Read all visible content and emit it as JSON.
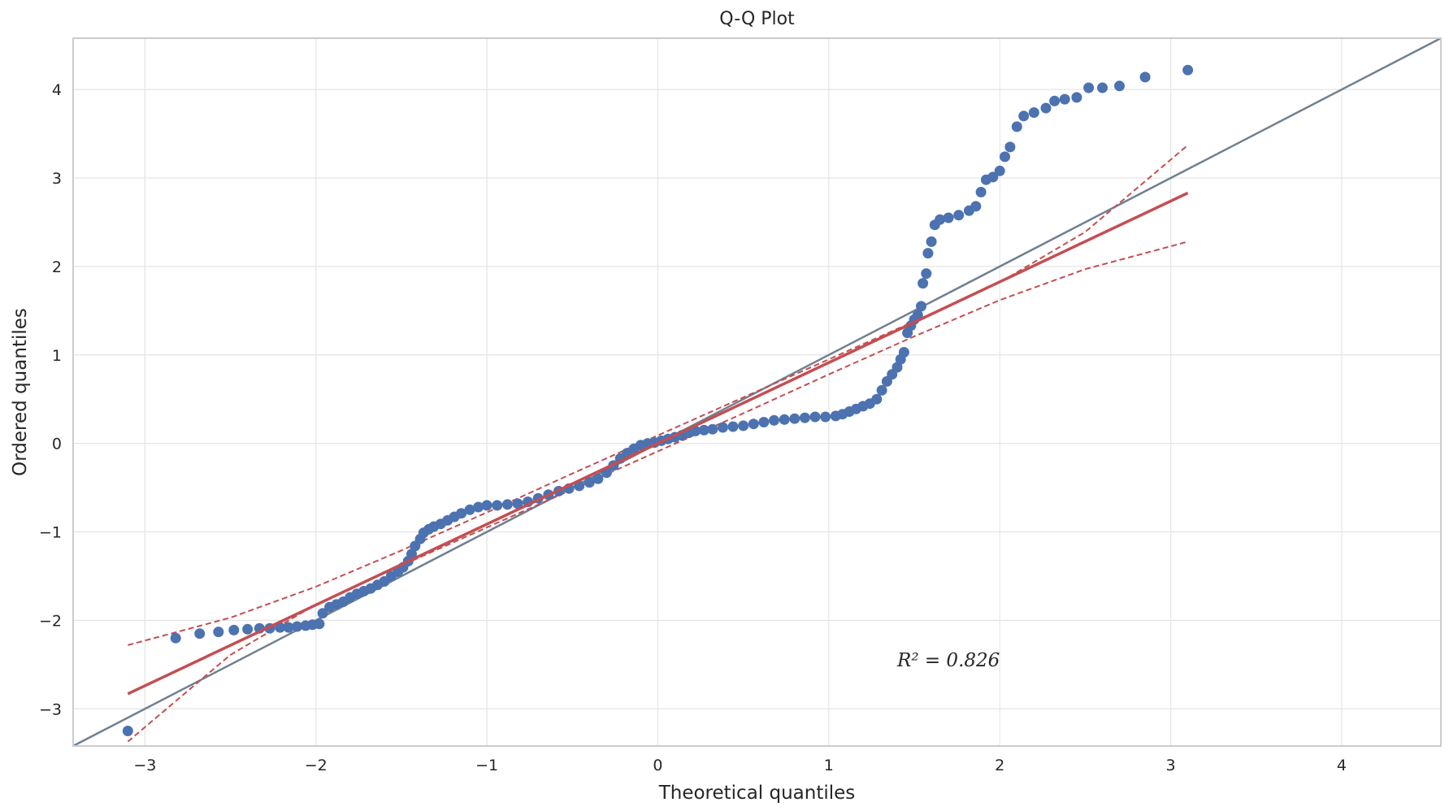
{
  "chart_data": {
    "type": "scatter",
    "title": "Q-Q Plot",
    "xlabel": "Theoretical quantiles",
    "ylabel": "Ordered quantiles",
    "xlim": [
      -3.42,
      4.58
    ],
    "ylim": [
      -3.42,
      4.58
    ],
    "xticks": [
      -3,
      -2,
      -1,
      0,
      1,
      2,
      3,
      4
    ],
    "yticks": [
      -3,
      -2,
      -1,
      0,
      1,
      2,
      3,
      4
    ],
    "xtick_labels": [
      "−3",
      "−2",
      "−1",
      "0",
      "1",
      "2",
      "3",
      "4"
    ],
    "ytick_labels": [
      "−3",
      "−2",
      "−1",
      "0",
      "1",
      "2",
      "3",
      "4"
    ],
    "grid": true,
    "annotation": "R² = 0.826",
    "annotation_pos": [
      1.4,
      -2.52
    ],
    "reference_line": {
      "name": "45° line",
      "color": "#708090",
      "points": [
        [
          -3.42,
          -3.42
        ],
        [
          4.58,
          4.58
        ]
      ]
    },
    "fit_line": {
      "name": "fit",
      "color": "#c44e52",
      "points": [
        [
          -3.1,
          -2.83
        ],
        [
          3.1,
          2.83
        ]
      ]
    },
    "conf_band": {
      "color": "#c44e52",
      "upper": [
        [
          -3.1,
          -2.28
        ],
        [
          -2.5,
          -1.97
        ],
        [
          -2.0,
          -1.62
        ],
        [
          -1.5,
          -1.21
        ],
        [
          -1.0,
          -0.78
        ],
        [
          -0.5,
          -0.34
        ],
        [
          0.0,
          0.09
        ],
        [
          0.5,
          0.52
        ],
        [
          1.0,
          0.95
        ],
        [
          1.5,
          1.38
        ],
        [
          2.0,
          1.82
        ],
        [
          2.5,
          2.39
        ],
        [
          3.1,
          3.37
        ]
      ],
      "lower": [
        [
          -3.1,
          -3.37
        ],
        [
          -2.5,
          -2.39
        ],
        [
          -2.0,
          -1.82
        ],
        [
          -1.5,
          -1.38
        ],
        [
          -1.0,
          -0.95
        ],
        [
          -0.5,
          -0.52
        ],
        [
          0.0,
          -0.09
        ],
        [
          0.5,
          0.34
        ],
        [
          1.0,
          0.78
        ],
        [
          1.5,
          1.21
        ],
        [
          2.0,
          1.62
        ],
        [
          2.5,
          1.97
        ],
        [
          3.1,
          2.28
        ]
      ]
    },
    "series": [
      {
        "marker_color": "#4c72b0",
        "points": [
          [
            -3.1,
            -3.25
          ],
          [
            -2.82,
            -2.2
          ],
          [
            -2.68,
            -2.15
          ],
          [
            -2.57,
            -2.13
          ],
          [
            -2.48,
            -2.11
          ],
          [
            -2.4,
            -2.1
          ],
          [
            -2.33,
            -2.09
          ],
          [
            -2.27,
            -2.09
          ],
          [
            -2.21,
            -2.08
          ],
          [
            -2.16,
            -2.08
          ],
          [
            -2.11,
            -2.07
          ],
          [
            -2.06,
            -2.06
          ],
          [
            -2.02,
            -2.05
          ],
          [
            -1.98,
            -2.04
          ],
          [
            -1.96,
            -1.92
          ],
          [
            -1.92,
            -1.85
          ],
          [
            -1.88,
            -1.82
          ],
          [
            -1.84,
            -1.79
          ],
          [
            -1.8,
            -1.74
          ],
          [
            -1.76,
            -1.7
          ],
          [
            -1.72,
            -1.67
          ],
          [
            -1.68,
            -1.64
          ],
          [
            -1.64,
            -1.6
          ],
          [
            -1.6,
            -1.56
          ],
          [
            -1.56,
            -1.5
          ],
          [
            -1.52,
            -1.45
          ],
          [
            -1.49,
            -1.4
          ],
          [
            -1.46,
            -1.33
          ],
          [
            -1.44,
            -1.25
          ],
          [
            -1.42,
            -1.16
          ],
          [
            -1.39,
            -1.08
          ],
          [
            -1.37,
            -1.01
          ],
          [
            -1.34,
            -0.97
          ],
          [
            -1.31,
            -0.94
          ],
          [
            -1.27,
            -0.91
          ],
          [
            -1.23,
            -0.87
          ],
          [
            -1.19,
            -0.83
          ],
          [
            -1.15,
            -0.79
          ],
          [
            -1.1,
            -0.75
          ],
          [
            -1.05,
            -0.72
          ],
          [
            -1.0,
            -0.7
          ],
          [
            -0.94,
            -0.7
          ],
          [
            -0.88,
            -0.69
          ],
          [
            -0.82,
            -0.68
          ],
          [
            -0.76,
            -0.66
          ],
          [
            -0.7,
            -0.62
          ],
          [
            -0.64,
            -0.58
          ],
          [
            -0.58,
            -0.54
          ],
          [
            -0.52,
            -0.51
          ],
          [
            -0.46,
            -0.48
          ],
          [
            -0.4,
            -0.44
          ],
          [
            -0.35,
            -0.4
          ],
          [
            -0.3,
            -0.33
          ],
          [
            -0.26,
            -0.25
          ],
          [
            -0.22,
            -0.17
          ],
          [
            -0.18,
            -0.11
          ],
          [
            -0.14,
            -0.06
          ],
          [
            -0.1,
            -0.02
          ],
          [
            -0.06,
            0.0
          ],
          [
            -0.02,
            0.01
          ],
          [
            0.02,
            0.03
          ],
          [
            0.06,
            0.05
          ],
          [
            0.1,
            0.07
          ],
          [
            0.14,
            0.09
          ],
          [
            0.18,
            0.12
          ],
          [
            0.22,
            0.14
          ],
          [
            0.27,
            0.15
          ],
          [
            0.32,
            0.16
          ],
          [
            0.38,
            0.18
          ],
          [
            0.44,
            0.19
          ],
          [
            0.5,
            0.2
          ],
          [
            0.56,
            0.22
          ],
          [
            0.62,
            0.24
          ],
          [
            0.68,
            0.26
          ],
          [
            0.74,
            0.27
          ],
          [
            0.8,
            0.28
          ],
          [
            0.86,
            0.29
          ],
          [
            0.92,
            0.3
          ],
          [
            0.98,
            0.3
          ],
          [
            1.04,
            0.31
          ],
          [
            1.08,
            0.33
          ],
          [
            1.12,
            0.36
          ],
          [
            1.16,
            0.39
          ],
          [
            1.2,
            0.42
          ],
          [
            1.24,
            0.45
          ],
          [
            1.28,
            0.5
          ],
          [
            1.31,
            0.6
          ],
          [
            1.34,
            0.7
          ],
          [
            1.37,
            0.78
          ],
          [
            1.4,
            0.86
          ],
          [
            1.42,
            0.95
          ],
          [
            1.44,
            1.03
          ],
          [
            1.46,
            1.25
          ],
          [
            1.48,
            1.33
          ],
          [
            1.5,
            1.4
          ],
          [
            1.52,
            1.45
          ],
          [
            1.54,
            1.55
          ],
          [
            1.55,
            1.81
          ],
          [
            1.57,
            1.92
          ],
          [
            1.58,
            2.15
          ],
          [
            1.6,
            2.28
          ],
          [
            1.62,
            2.47
          ],
          [
            1.65,
            2.53
          ],
          [
            1.7,
            2.55
          ],
          [
            1.76,
            2.58
          ],
          [
            1.82,
            2.63
          ],
          [
            1.86,
            2.68
          ],
          [
            1.89,
            2.84
          ],
          [
            1.92,
            2.98
          ],
          [
            1.96,
            3.01
          ],
          [
            2.0,
            3.08
          ],
          [
            2.03,
            3.24
          ],
          [
            2.06,
            3.35
          ],
          [
            2.1,
            3.58
          ],
          [
            2.14,
            3.7
          ],
          [
            2.2,
            3.74
          ],
          [
            2.27,
            3.79
          ],
          [
            2.32,
            3.87
          ],
          [
            2.38,
            3.89
          ],
          [
            2.45,
            3.91
          ],
          [
            2.52,
            4.02
          ],
          [
            2.6,
            4.02
          ],
          [
            2.7,
            4.04
          ],
          [
            2.85,
            4.14
          ],
          [
            3.1,
            4.22
          ]
        ]
      }
    ]
  }
}
